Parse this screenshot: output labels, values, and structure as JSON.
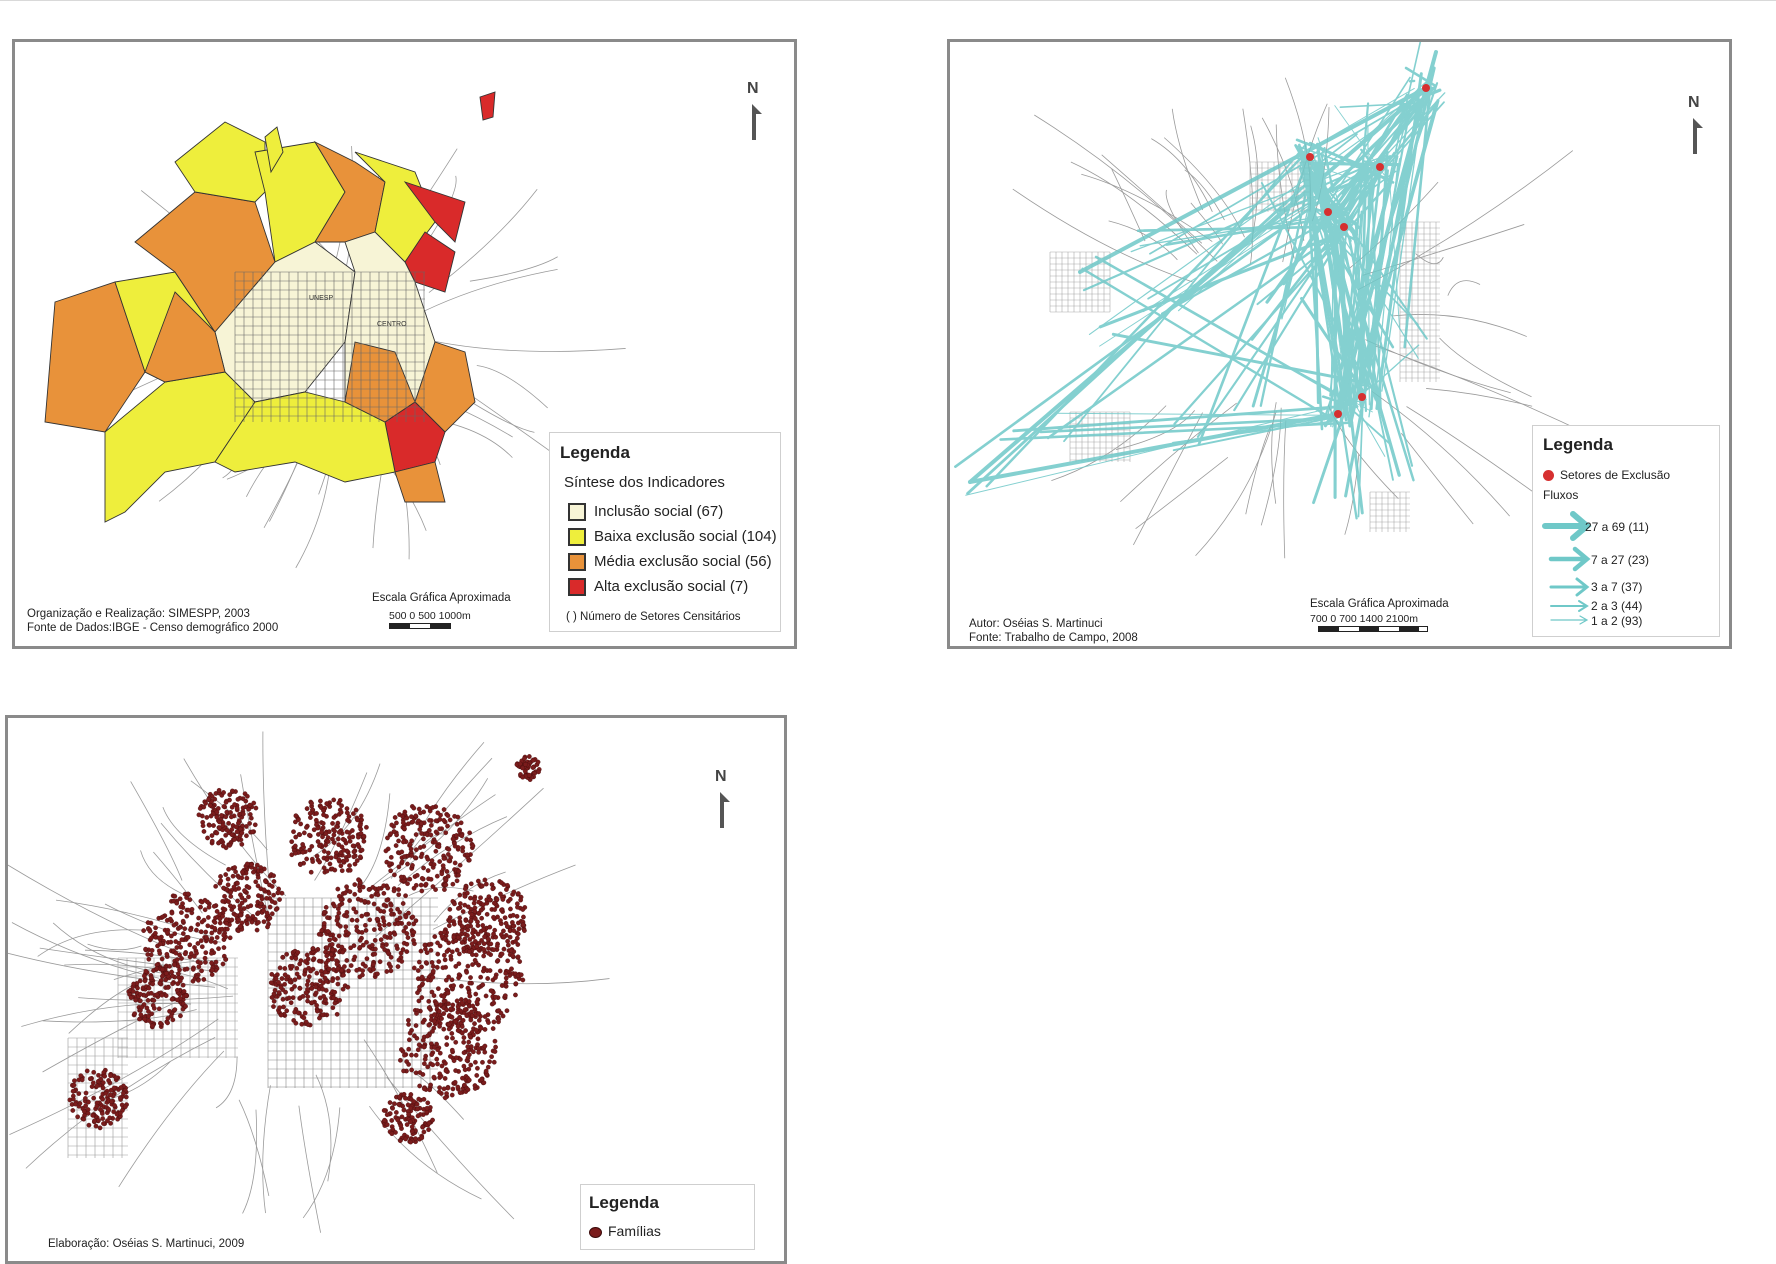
{
  "panel1": {
    "legend": {
      "title": "Legenda",
      "subtitle": "Síntese dos Indicadores",
      "items": [
        {
          "label": "Inclusão social (67)",
          "color": "#f7f4d6"
        },
        {
          "label": "Baixa exclusão social (104)",
          "color": "#eeee3c"
        },
        {
          "label": "Média exclusão social (56)",
          "color": "#e8923a"
        },
        {
          "label": "Alta exclusão social (7)",
          "color": "#d92a2a"
        }
      ],
      "note": "( ) Número de Setores Censitários"
    },
    "credit_line1": "Organização e Realização:  SIMESPP, 2003",
    "credit_line2": "Fonte de Dados:IBGE - Censo demográfico 2000",
    "scale_title": "Escala Gráfica Aproximada",
    "scale_ticks": "500    0    500  1000m",
    "north": "N",
    "labels": [
      "UNESP",
      "CENTRO"
    ]
  },
  "panel2": {
    "legend": {
      "title": "Legenda",
      "points_label": "Setores de Exclusão",
      "flows_label": "Fluxos",
      "flows": [
        {
          "label": "27 a 69  (11)"
        },
        {
          "label": "7 a 27   (23)"
        },
        {
          "label": "3 a   7   (37)"
        },
        {
          "label": "2 a   3   (44)"
        },
        {
          "label": "1 a   2   (93)"
        }
      ]
    },
    "credit_line1": "Autor: Oséias S. Martinuci",
    "credit_line2": "Fonte: Trabalho de Campo, 2008",
    "scale_title": "Escala Gráfica Aproximada",
    "scale_ticks": "700     0     700  1400   2100m",
    "north": "N",
    "flow_color": "#6fc8c8",
    "point_color": "#d63030"
  },
  "panel3": {
    "legend": {
      "title": "Legenda",
      "items": [
        {
          "label": "Famílias",
          "color": "#7a1c1c"
        }
      ]
    },
    "credit_line1": "Elaboração: Oséias S. Martinuci, 2009",
    "north": "N"
  }
}
